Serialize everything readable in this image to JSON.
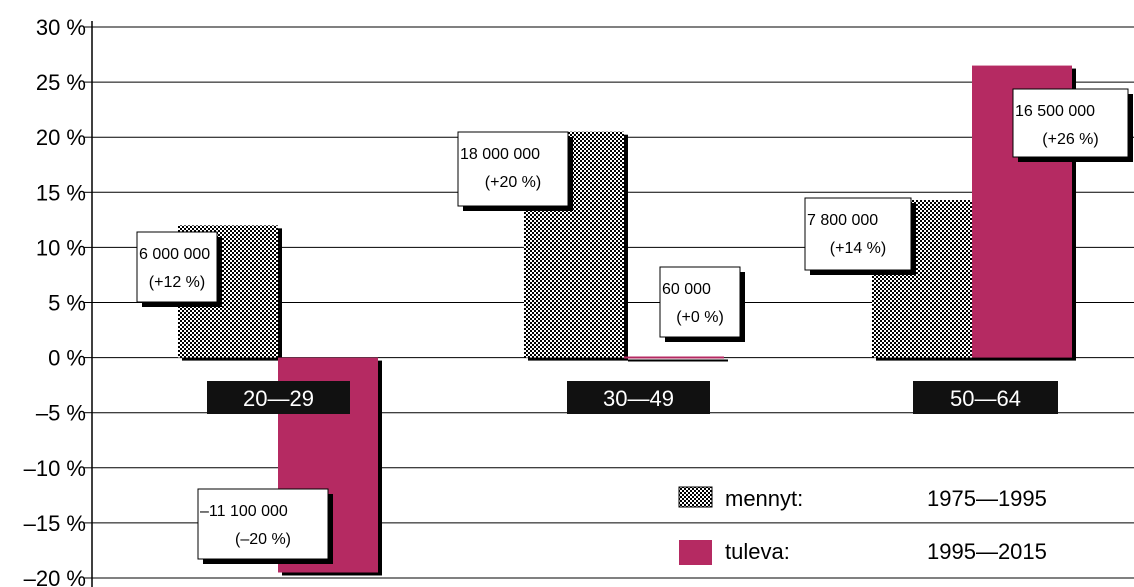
{
  "chart_data": {
    "type": "bar",
    "categories": [
      "20—29",
      "30—49",
      "50—64"
    ],
    "ylim": [
      -20,
      30
    ],
    "yticks": [
      30,
      25,
      20,
      15,
      10,
      5,
      0,
      -5,
      -10,
      -15,
      -20
    ],
    "ytick_labels": [
      "30 %",
      "25 %",
      "20 %",
      "15 %",
      "10 %",
      "5 %",
      "0 %",
      "–5 %",
      "–10 %",
      "–15 %",
      "–20 %"
    ],
    "grid": true,
    "legend_position": "bottom-right",
    "series": [
      {
        "name": "mennyt:",
        "period": "1975—1995",
        "color": "#000000",
        "pattern": "checkered",
        "values": [
          12,
          20.5,
          14.3
        ],
        "labels": [
          [
            "6 000 000",
            "(+12 %)"
          ],
          [
            "18 000 000",
            "(+20 %)"
          ],
          [
            "7 800 000",
            "(+14 %)"
          ]
        ]
      },
      {
        "name": "tuleva:",
        "period": "1995—2015",
        "color": "#b52a62",
        "values": [
          -19.5,
          0.1,
          26.5
        ],
        "labels": [
          [
            "–11 100 000",
            "(–20 %)"
          ],
          [
            "60 000",
            "(+0 %)"
          ],
          [
            "16 500 000",
            "(+26 %)"
          ]
        ]
      }
    ]
  }
}
